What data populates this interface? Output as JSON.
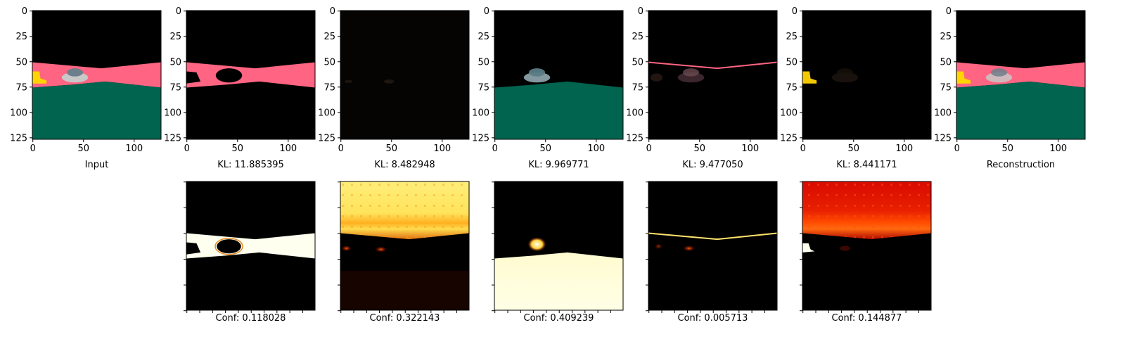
{
  "figure": {
    "background": "#ffffff",
    "colors": {
      "sky": "#000000",
      "road": "#ff6482",
      "ground": "#00644f",
      "car_body": "#c8c8c8",
      "car_window": "#6e7f8c",
      "sign": "#ffd400",
      "heat_low": "#000000",
      "heat_mid": "#d21e00",
      "heat_high": "#ffe24a",
      "heat_max": "#fffff0"
    }
  },
  "chart_data": [
    {
      "type": "image",
      "caption": "Input",
      "panel": "input",
      "xlim": [
        0,
        127
      ],
      "ylim": [
        127,
        0
      ],
      "xticks": [
        "0",
        "50",
        "100"
      ],
      "yticks": [
        "0",
        "25",
        "50",
        "75",
        "100",
        "125"
      ]
    },
    {
      "type": "image",
      "caption": "KL: 11.885395",
      "panel": "component-1",
      "kl": 11.885395,
      "xlim": [
        0,
        127
      ],
      "ylim": [
        127,
        0
      ],
      "xticks": [
        "0",
        "50",
        "100"
      ],
      "yticks": [
        "0",
        "25",
        "50",
        "75",
        "100",
        "125"
      ]
    },
    {
      "type": "image",
      "caption": "KL: 8.482948",
      "panel": "component-2",
      "kl": 8.482948,
      "xlim": [
        0,
        127
      ],
      "ylim": [
        127,
        0
      ],
      "xticks": [
        "0",
        "50",
        "100"
      ],
      "yticks": [
        "0",
        "25",
        "50",
        "75",
        "100",
        "125"
      ]
    },
    {
      "type": "image",
      "caption": "KL: 9.969771",
      "panel": "component-3",
      "kl": 9.969771,
      "xlim": [
        0,
        127
      ],
      "ylim": [
        127,
        0
      ],
      "xticks": [
        "0",
        "50",
        "100"
      ],
      "yticks": [
        "0",
        "25",
        "50",
        "75",
        "100",
        "125"
      ]
    },
    {
      "type": "image",
      "caption": "KL: 9.477050",
      "panel": "component-4",
      "kl": 9.47705,
      "xlim": [
        0,
        127
      ],
      "ylim": [
        127,
        0
      ],
      "xticks": [
        "0",
        "50",
        "100"
      ],
      "yticks": [
        "0",
        "25",
        "50",
        "75",
        "100",
        "125"
      ]
    },
    {
      "type": "image",
      "caption": "KL: 8.441171",
      "panel": "component-5",
      "kl": 8.441171,
      "xlim": [
        0,
        127
      ],
      "ylim": [
        127,
        0
      ],
      "xticks": [
        "0",
        "50",
        "100"
      ],
      "yticks": [
        "0",
        "25",
        "50",
        "75",
        "100",
        "125"
      ]
    },
    {
      "type": "image",
      "caption": "Reconstruction",
      "panel": "reconstruction",
      "xlim": [
        0,
        127
      ],
      "ylim": [
        127,
        0
      ],
      "xticks": [
        "0",
        "50",
        "100"
      ],
      "yticks": [
        "0",
        "25",
        "50",
        "75",
        "100",
        "125"
      ]
    },
    {
      "type": "heatmap",
      "caption": "Conf: 0.118028",
      "conf": 0.118028,
      "colormap": "hot",
      "panel": "mask-1"
    },
    {
      "type": "heatmap",
      "caption": "Conf: 0.322143",
      "conf": 0.322143,
      "colormap": "hot",
      "panel": "mask-2"
    },
    {
      "type": "heatmap",
      "caption": "Conf: 0.409239",
      "conf": 0.409239,
      "colormap": "hot",
      "panel": "mask-3"
    },
    {
      "type": "heatmap",
      "caption": "Conf: 0.005713",
      "conf": 0.005713,
      "colormap": "hot",
      "panel": "mask-4"
    },
    {
      "type": "heatmap",
      "caption": "Conf: 0.144877",
      "conf": 0.144877,
      "colormap": "hot",
      "panel": "mask-5"
    }
  ]
}
